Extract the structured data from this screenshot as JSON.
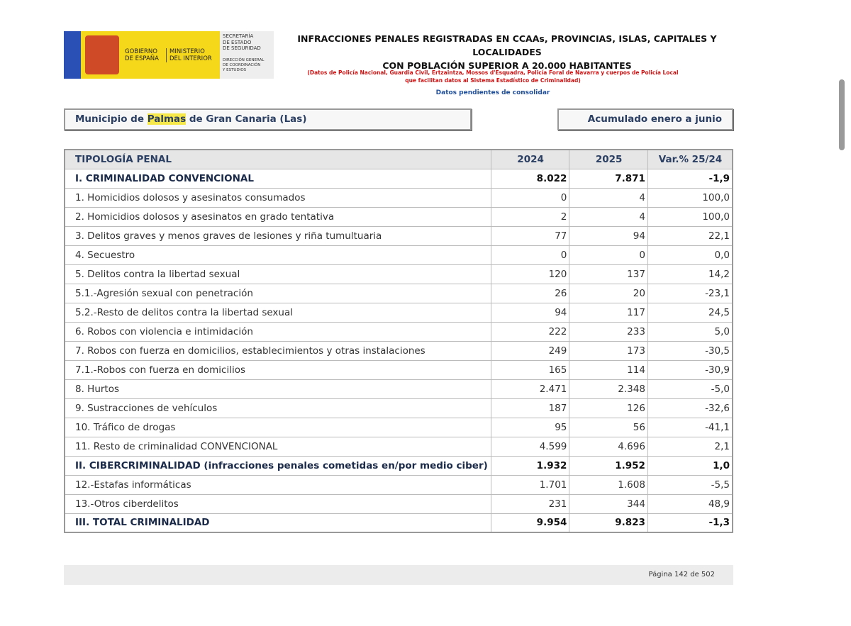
{
  "header": {
    "logo": {
      "government": [
        "GOBIERNO",
        "DE ESPAÑA"
      ],
      "ministry": [
        "MINISTERIO",
        "DEL INTERIOR"
      ],
      "secretariat": [
        "SECRETARÍA",
        "DE ESTADO",
        "DE SEGURIDAD"
      ],
      "directorate": [
        "DIRECCIÓN GENERAL",
        "DE COORDINACIÓN",
        "Y ESTUDIOS"
      ]
    },
    "title": [
      "INFRACCIONES PENALES REGISTRADAS EN CCAAs, PROVINCIAS, ISLAS, CAPITALES Y LOCALIDADES",
      "CON POBLACIÓN SUPERIOR A 20.000 HABITANTES"
    ],
    "note": [
      "(Datos de Policía Nacional, Guardia Civil, Ertzaintza, Mossos d'Esquadra, Policía Foral de Navarra y cuerpos de Policía Local",
      "que facilitan datos al Sistema Estadístico de Criminalidad)"
    ],
    "status": "Datos pendientes de consolidar"
  },
  "municipality": {
    "prefix": "Municipio de",
    "highlight": "Palmas",
    "suffix": "de Gran Canaria (Las)"
  },
  "period": "Acumulado enero a junio",
  "table": {
    "columns": [
      "TIPOLOGÍA PENAL",
      "2024",
      "2025",
      "Var.% 25/24"
    ],
    "rows": [
      {
        "bold": true,
        "cells": [
          "I. CRIMINALIDAD CONVENCIONAL",
          "8.022",
          "7.871",
          "-1,9"
        ]
      },
      {
        "bold": false,
        "cells": [
          "1. Homicidios dolosos y asesinatos consumados",
          "0",
          "4",
          "100,0"
        ]
      },
      {
        "bold": false,
        "cells": [
          "2. Homicidios dolosos y asesinatos en grado tentativa",
          "2",
          "4",
          "100,0"
        ]
      },
      {
        "bold": false,
        "cells": [
          "3. Delitos graves y menos graves de lesiones y riña tumultuaria",
          "77",
          "94",
          "22,1"
        ]
      },
      {
        "bold": false,
        "cells": [
          "4. Secuestro",
          "0",
          "0",
          "0,0"
        ]
      },
      {
        "bold": false,
        "cells": [
          "5. Delitos contra la libertad sexual",
          "120",
          "137",
          "14,2"
        ]
      },
      {
        "bold": false,
        "cells": [
          "5.1.-Agresión sexual con penetración",
          "26",
          "20",
          "-23,1"
        ]
      },
      {
        "bold": false,
        "cells": [
          "5.2.-Resto de delitos contra la libertad sexual",
          "94",
          "117",
          "24,5"
        ]
      },
      {
        "bold": false,
        "cells": [
          "6. Robos con violencia e intimidación",
          "222",
          "233",
          "5,0"
        ]
      },
      {
        "bold": false,
        "cells": [
          "7. Robos con fuerza en domicilios, establecimientos y otras instalaciones",
          "249",
          "173",
          "-30,5"
        ]
      },
      {
        "bold": false,
        "cells": [
          "7.1.-Robos con fuerza en domicilios",
          "165",
          "114",
          "-30,9"
        ]
      },
      {
        "bold": false,
        "cells": [
          "8. Hurtos",
          "2.471",
          "2.348",
          "-5,0"
        ]
      },
      {
        "bold": false,
        "cells": [
          "9. Sustracciones de vehículos",
          "187",
          "126",
          "-32,6"
        ]
      },
      {
        "bold": false,
        "cells": [
          "10. Tráfico de drogas",
          "95",
          "56",
          "-41,1"
        ]
      },
      {
        "bold": false,
        "cells": [
          "11. Resto de criminalidad CONVENCIONAL",
          "4.599",
          "4.696",
          "2,1"
        ]
      },
      {
        "bold": true,
        "cells": [
          "II. CIBERCRIMINALIDAD (infracciones penales cometidas en/por medio ciber)",
          "1.932",
          "1.952",
          "1,0"
        ]
      },
      {
        "bold": false,
        "cells": [
          "12.-Estafas informáticas",
          "1.701",
          "1.608",
          "-5,5"
        ]
      },
      {
        "bold": false,
        "cells": [
          "13.-Otros ciberdelitos",
          "231",
          "344",
          "48,9"
        ]
      },
      {
        "bold": true,
        "cells": [
          "III. TOTAL CRIMINALIDAD",
          "9.954",
          "9.823",
          "-1,3"
        ]
      }
    ]
  },
  "footer": {
    "page": "Página 142 de 502"
  }
}
